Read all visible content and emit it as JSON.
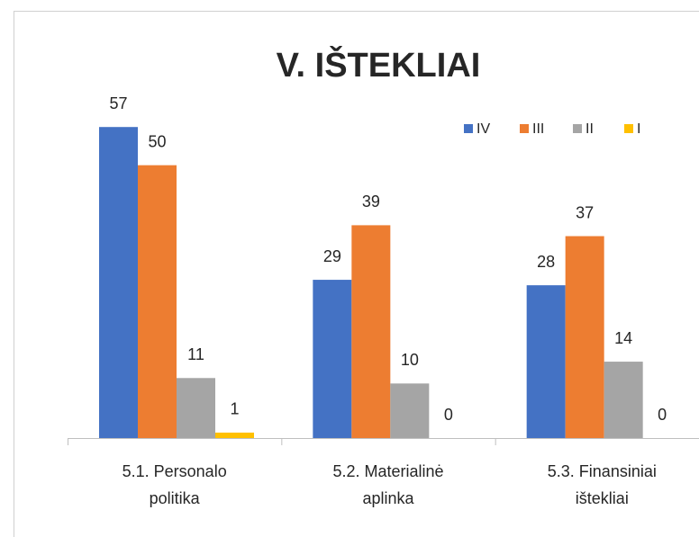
{
  "chart_data": {
    "type": "bar",
    "title": "V. IŠTEKLIAI",
    "categories": [
      "5.1. Personalo politika",
      "5.2. Materialinė aplinka",
      "5.3. Finansiniai ištekliai"
    ],
    "series": [
      {
        "name": "IV",
        "color": "#4472c4",
        "values": [
          57,
          29,
          28
        ]
      },
      {
        "name": "III",
        "color": "#ed7d31",
        "values": [
          50,
          39,
          37
        ]
      },
      {
        "name": "II",
        "color": "#a5a5a5",
        "values": [
          11,
          10,
          14
        ]
      },
      {
        "name": "I",
        "color": "#ffc000",
        "values": [
          1,
          0,
          0
        ]
      }
    ],
    "ylim": [
      0,
      60
    ],
    "legend": "top-right"
  }
}
